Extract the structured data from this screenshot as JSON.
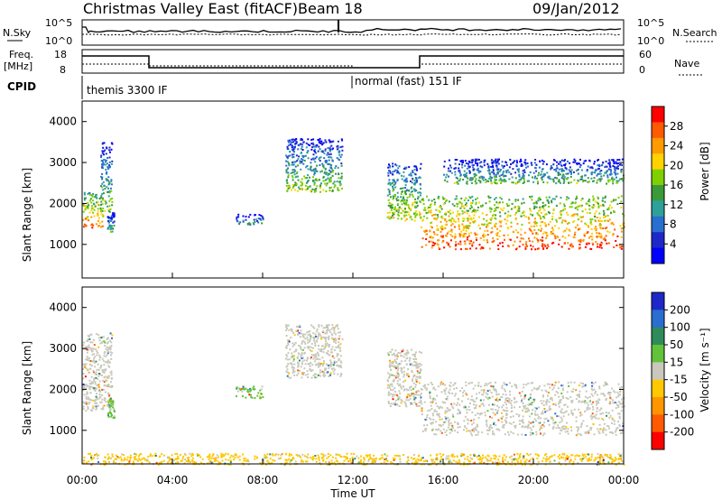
{
  "header": {
    "site": "Christmas Valley East (fitACF)",
    "beam": "Beam 18",
    "date": "09/Jan/2012"
  },
  "top_panels": {
    "nsky_label": "N.Sky",
    "nsearch_label": "N.Search",
    "noise_ticks": [
      "10^5",
      "10^0"
    ],
    "freq_label": "Freq.",
    "freq_unit": "[MHz]",
    "freq_ticks": [
      "18",
      "8"
    ],
    "nave_label": "Nave",
    "nave_ticks": [
      "60",
      "0"
    ],
    "cpid_label": "CPID",
    "cpid_segments": [
      {
        "name": "themis 3300 IF",
        "start_hour": 0.0
      },
      {
        "name": "normal (fast) 151 IF",
        "start_hour": 12.0
      }
    ]
  },
  "chart_data": [
    {
      "type": "heatmap",
      "panel": "power",
      "title": "",
      "xlabel": "",
      "ylabel": "Slant Range [km]",
      "xlim": [
        0,
        24
      ],
      "ylim": [
        180,
        4500
      ],
      "y_ticks": [
        1000,
        2000,
        3000,
        4000
      ],
      "colorbar": {
        "label": "Power [dB]",
        "ticks": [
          "28",
          "24",
          "20",
          "16",
          "12",
          "8",
          "4"
        ],
        "colors": [
          "#ff0000",
          "#ff5a00",
          "#ff9a00",
          "#ffd200",
          "#7ed000",
          "#3a9a3a",
          "#2ea09a",
          "#2a6ed0",
          "#1e28c8",
          "#0000ff"
        ]
      },
      "echo_regions": [
        {
          "start_hour": 0.0,
          "end_hour": 0.9,
          "range_low_km": 1400,
          "range_high_km": 2300,
          "power_db": 20
        },
        {
          "start_hour": 0.8,
          "end_hour": 1.3,
          "range_low_km": 1800,
          "range_high_km": 3500,
          "power_db": 12
        },
        {
          "start_hour": 1.1,
          "end_hour": 1.4,
          "range_low_km": 1300,
          "range_high_km": 1800,
          "power_db": 10
        },
        {
          "start_hour": 6.8,
          "end_hour": 8.0,
          "range_low_km": 1500,
          "range_high_km": 1750,
          "power_db": 8
        },
        {
          "start_hour": 9.0,
          "end_hour": 11.5,
          "range_low_km": 2300,
          "range_high_km": 3600,
          "power_db": 12
        },
        {
          "start_hour": 13.5,
          "end_hour": 15.0,
          "range_low_km": 1600,
          "range_high_km": 3000,
          "power_db": 14
        },
        {
          "start_hour": 15.0,
          "end_hour": 24.0,
          "range_low_km": 900,
          "range_high_km": 2200,
          "power_db": 22
        },
        {
          "start_hour": 16.0,
          "end_hour": 24.0,
          "range_low_km": 2500,
          "range_high_km": 3100,
          "power_db": 10
        }
      ]
    },
    {
      "type": "heatmap",
      "panel": "velocity",
      "title": "",
      "xlabel": "Time UT",
      "ylabel": "Slant Range [km]",
      "xlim": [
        0,
        24
      ],
      "ylim": [
        180,
        4500
      ],
      "x_ticks": [
        "00:00",
        "04:00",
        "08:00",
        "12:00",
        "16:00",
        "20:00",
        "00:00"
      ],
      "y_ticks": [
        1000,
        2000,
        3000,
        4000
      ],
      "colorbar": {
        "label": "Velocity [m s⁻¹]",
        "ticks": [
          "200",
          "100",
          "50",
          "15",
          "-15",
          "-50",
          "-100",
          "-200"
        ],
        "colors": [
          "#1e28c8",
          "#2a6ed0",
          "#2e8c5a",
          "#62c23a",
          "#c8c8bc",
          "#ffc800",
          "#ff9600",
          "#ff5a00",
          "#ff0000"
        ]
      },
      "echo_regions": [
        {
          "start_hour": 0.0,
          "end_hour": 1.3,
          "range_low_km": 1500,
          "range_high_km": 3400,
          "velocity_ms": 0
        },
        {
          "start_hour": 1.1,
          "end_hour": 1.4,
          "range_low_km": 1300,
          "range_high_km": 1800,
          "velocity_ms": 40
        },
        {
          "start_hour": 6.8,
          "end_hour": 8.0,
          "range_low_km": 1800,
          "range_high_km": 2100,
          "velocity_ms": 40
        },
        {
          "start_hour": 9.0,
          "end_hour": 11.5,
          "range_low_km": 2300,
          "range_high_km": 3600,
          "velocity_ms": 0
        },
        {
          "start_hour": 13.5,
          "end_hour": 15.0,
          "range_low_km": 1600,
          "range_high_km": 3000,
          "velocity_ms": 0
        },
        {
          "start_hour": 15.0,
          "end_hour": 24.0,
          "range_low_km": 900,
          "range_high_km": 2200,
          "velocity_ms": 0
        },
        {
          "start_hour": 0.0,
          "end_hour": 24.0,
          "range_low_km": 180,
          "range_high_km": 450,
          "velocity_ms": -40
        }
      ]
    }
  ]
}
